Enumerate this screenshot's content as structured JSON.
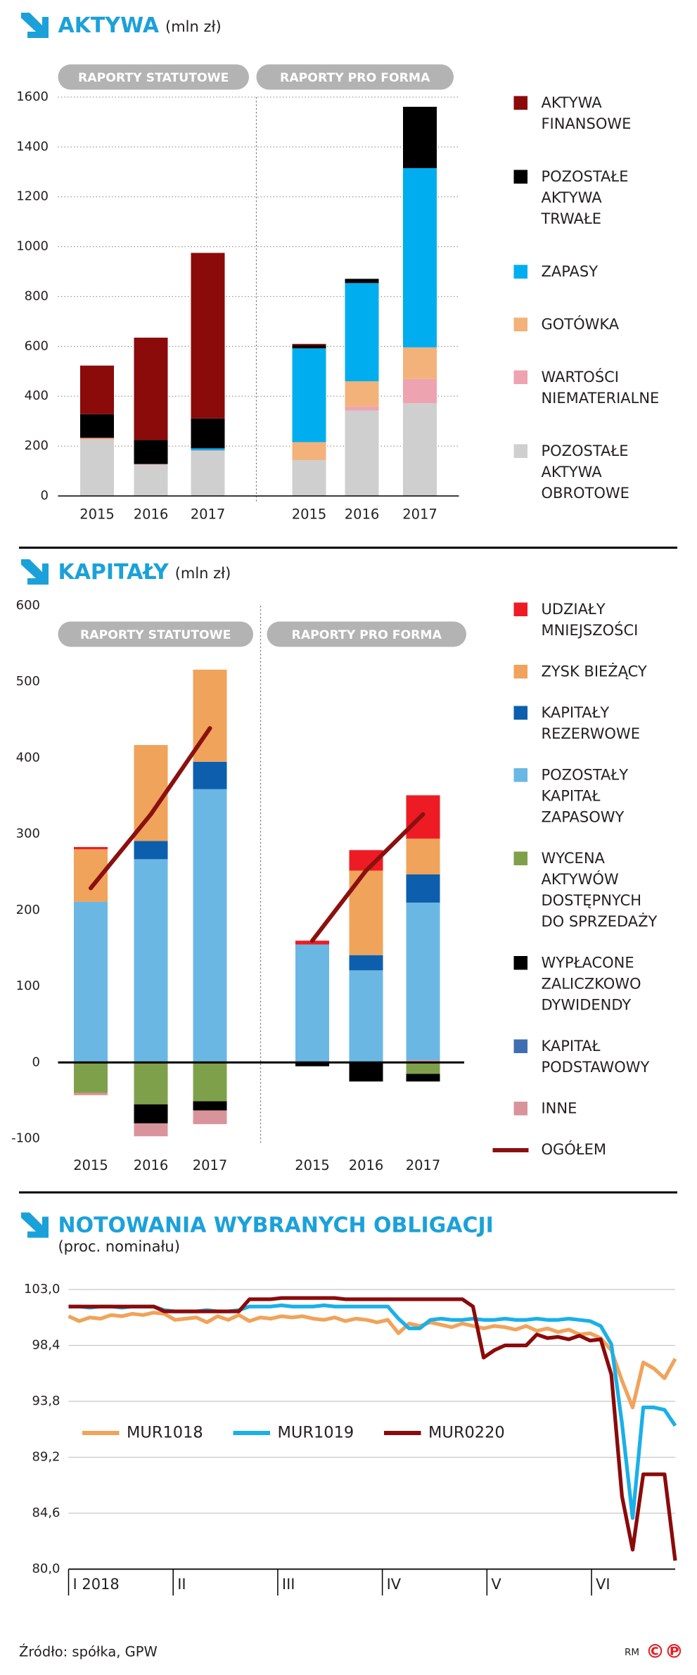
{
  "chart_data": [
    {
      "type": "bar",
      "stacked": true,
      "title": "AKTYWA",
      "subtitle": "(mln zł)",
      "grid": true,
      "groups": [
        {
          "name": "RAPORTY STATUTOWE",
          "categories": [
            "2015",
            "2016",
            "2017"
          ]
        },
        {
          "name": "RAPORTY PRO FORMA",
          "categories": [
            "2015",
            "2016",
            "2017"
          ]
        }
      ],
      "ylim": [
        0,
        1600
      ],
      "yticks": [
        0,
        200,
        400,
        600,
        800,
        1000,
        1200,
        1400,
        1600
      ],
      "series": [
        {
          "name": "AKTYWA FINANSOWE",
          "color": "#8b0a0a",
          "values": [
            195,
            410,
            664,
            5,
            0,
            0
          ]
        },
        {
          "name": "POZOSTAŁE AKTYWA TRWAŁE",
          "color": "#000000",
          "values": [
            95,
            97,
            120,
            13,
            17,
            246
          ]
        },
        {
          "name": "ZAPASY",
          "color": "#00aeef",
          "values": [
            0,
            0,
            8,
            376,
            394,
            719
          ]
        },
        {
          "name": "GOTÓWKA",
          "color": "#f2b27a",
          "values": [
            5,
            0,
            0,
            72,
            101,
            127
          ]
        },
        {
          "name": "WARTOŚCI NIEMATERIALNE",
          "color": "#eea3b0",
          "values": [
            3,
            3,
            3,
            0,
            16,
            97
          ]
        },
        {
          "name": "POZOSTAŁE AKTYWA OBROTOWE",
          "color": "#cfcfcf",
          "values": [
            225,
            125,
            180,
            144,
            343,
            372
          ]
        }
      ]
    },
    {
      "type": "bar",
      "stacked": true,
      "title": "KAPITAŁY",
      "subtitle": "(mln zł)",
      "grid": false,
      "groups": [
        {
          "name": "RAPORTY STATUTOWE",
          "categories": [
            "2015",
            "2016",
            "2017"
          ]
        },
        {
          "name": "RAPORTY PRO FORMA",
          "categories": [
            "2015",
            "2016",
            "2017"
          ]
        }
      ],
      "ylim": [
        -100,
        600
      ],
      "yticks": [
        -100,
        0,
        100,
        200,
        300,
        400,
        500,
        600
      ],
      "series": [
        {
          "name": "UDZIAŁY MNIEJSZOŚCI",
          "color": "#ed1c24",
          "values": [
            3,
            0,
            0,
            5,
            27,
            57
          ]
        },
        {
          "name": "ZYSK BIEŻĄCY",
          "color": "#f0a35a",
          "values": [
            69,
            126,
            121,
            0,
            111,
            47
          ]
        },
        {
          "name": "KAPITAŁY REZERWOWE",
          "color": "#0d5fae",
          "values": [
            0,
            24,
            36,
            0,
            20,
            37
          ]
        },
        {
          "name": "POZOSTAŁY KAPITAŁ ZAPASOWY",
          "color": "#6ab7e4",
          "values": [
            211,
            267,
            359,
            155,
            121,
            207
          ]
        },
        {
          "name": "WYCENA AKTYWÓW DOSTĘPNYCH DO SPRZEDAŻY",
          "color": "#7fa04b",
          "values": [
            -40,
            -55,
            -51,
            0,
            0,
            -15
          ]
        },
        {
          "name": "WYPŁACONE ZALICZKOWO DYWIDENDY",
          "color": "#000000",
          "values": [
            0,
            -25,
            -12,
            -5,
            -25,
            -10
          ]
        },
        {
          "name": "KAPITAŁ PODSTAWOWY",
          "color": "#3f6fb0",
          "values": [
            0,
            0,
            0,
            0,
            0,
            0
          ]
        },
        {
          "name": "INNE",
          "color": "#d9949b",
          "values": [
            -3,
            -17,
            -18,
            0,
            0,
            3
          ]
        },
        {
          "name": "OGÓŁEM",
          "type": "line",
          "color": "#8b1010",
          "values": [
            229,
            326,
            439,
            160,
            252,
            326
          ]
        }
      ]
    },
    {
      "type": "line",
      "title": "NOTOWANIA WYBRANYCH OBLIGACJI",
      "subtitle": "(proc. nominału)",
      "grid": true,
      "months": [
        "I 2018",
        "II",
        "III",
        "IV",
        "V",
        "VI"
      ],
      "ylim": [
        80,
        103
      ],
      "yticks": [
        {
          "value": 80,
          "label": "80,0"
        },
        {
          "value": 84.6,
          "label": "84,6"
        },
        {
          "value": 89.2,
          "label": "89,2"
        },
        {
          "value": 93.8,
          "label": "93,8"
        },
        {
          "value": 98.4,
          "label": "98,4"
        },
        {
          "value": 103,
          "label": "103,0"
        }
      ],
      "series": [
        {
          "name": "MUR1018",
          "color": "#f0a35a",
          "values": [
            100.8,
            100.4,
            100.7,
            100.6,
            100.9,
            100.8,
            101.0,
            100.9,
            101.1,
            101.0,
            100.5,
            100.6,
            100.7,
            100.3,
            100.8,
            100.5,
            100.9,
            100.4,
            100.7,
            100.6,
            100.8,
            100.7,
            100.8,
            100.6,
            100.5,
            100.7,
            100.4,
            100.6,
            100.5,
            100.3,
            100.5,
            99.4,
            100.2,
            100.0,
            100.3,
            100.1,
            99.9,
            100.2,
            100.0,
            99.8,
            100.0,
            99.9,
            99.7,
            100.0,
            99.6,
            99.8,
            99.5,
            99.7,
            99.3,
            99.4,
            99.0,
            98.0,
            95.5,
            93.3,
            97.0,
            96.5,
            95.7,
            97.3
          ]
        },
        {
          "name": "MUR1019",
          "color": "#1ab0e8",
          "values": [
            101.6,
            101.6,
            101.5,
            101.6,
            101.6,
            101.5,
            101.6,
            101.6,
            101.6,
            101.3,
            101.2,
            101.2,
            101.2,
            101.3,
            101.2,
            101.2,
            101.3,
            101.6,
            101.6,
            101.6,
            101.7,
            101.6,
            101.6,
            101.6,
            101.7,
            101.6,
            101.6,
            101.6,
            101.6,
            101.6,
            101.6,
            100.6,
            99.8,
            99.8,
            100.5,
            100.6,
            100.5,
            100.5,
            100.6,
            100.5,
            100.5,
            100.6,
            100.5,
            100.5,
            100.6,
            100.5,
            100.5,
            100.6,
            100.5,
            100.4,
            100.0,
            98.5,
            92.0,
            84.2,
            93.3,
            93.3,
            93.1,
            91.8
          ]
        },
        {
          "name": "MUR0220",
          "color": "#8b0a0a",
          "values": [
            101.6,
            101.6,
            101.6,
            101.6,
            101.6,
            101.6,
            101.6,
            101.6,
            101.6,
            101.2,
            101.2,
            101.2,
            101.2,
            101.2,
            101.2,
            101.2,
            101.2,
            102.2,
            102.2,
            102.2,
            102.3,
            102.3,
            102.3,
            102.3,
            102.3,
            102.3,
            102.2,
            102.2,
            102.2,
            102.2,
            102.2,
            102.2,
            102.2,
            102.2,
            102.2,
            102.2,
            102.2,
            102.2,
            101.6,
            97.4,
            98.0,
            98.4,
            98.4,
            98.4,
            99.3,
            99.0,
            99.1,
            98.9,
            99.2,
            98.8,
            98.9,
            96.0,
            86.0,
            81.6,
            87.8,
            87.8,
            87.8,
            80.7
          ]
        }
      ]
    }
  ],
  "source": "Źródło: spółka, GPW",
  "credit": "RM",
  "logo": "©℗"
}
